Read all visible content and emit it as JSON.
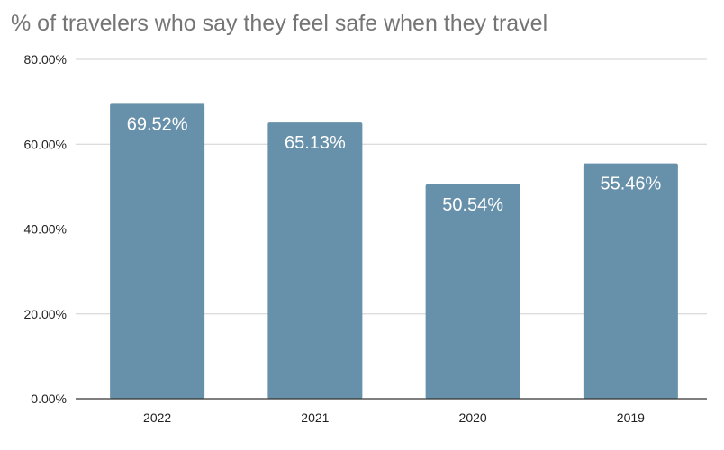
{
  "chart_data": {
    "type": "bar",
    "title": "% of travelers who say they feel safe when they travel",
    "categories": [
      "2022",
      "2021",
      "2020",
      "2019"
    ],
    "values": [
      69.52,
      65.13,
      50.54,
      55.46
    ],
    "data_labels": [
      "69.52%",
      "65.13%",
      "50.54%",
      "55.46%"
    ],
    "xlabel": "",
    "ylabel": "",
    "ylim": [
      0,
      80
    ],
    "yticks": [
      0,
      20,
      40,
      60,
      80
    ],
    "ytick_labels": [
      "0.00%",
      "20.00%",
      "40.00%",
      "60.00%",
      "80.00%"
    ],
    "grid": true,
    "legend": "none",
    "bar_color": "#6790aa"
  }
}
